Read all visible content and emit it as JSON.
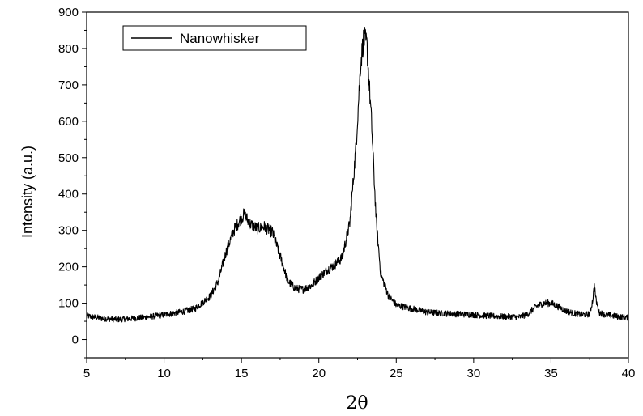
{
  "chart_data": {
    "type": "line",
    "xlabel": "2θ",
    "ylabel": "Intensity (a.u.)",
    "xlim": [
      5,
      40
    ],
    "ylim": [
      -50,
      900
    ],
    "x_ticks": [
      5,
      10,
      15,
      20,
      25,
      30,
      35,
      40
    ],
    "y_ticks": [
      0,
      100,
      200,
      300,
      400,
      500,
      600,
      700,
      800,
      900
    ],
    "grid": false,
    "legend_position": "top-left",
    "series": [
      {
        "name": "Nanowhisker",
        "color": "#000000",
        "x": [
          5.0,
          6.0,
          7.0,
          8.0,
          9.0,
          10.0,
          11.0,
          12.0,
          13.0,
          13.5,
          14.0,
          14.5,
          15.0,
          15.2,
          15.5,
          16.0,
          16.5,
          17.0,
          17.5,
          18.0,
          18.5,
          19.0,
          19.5,
          20.0,
          20.5,
          21.0,
          21.5,
          22.0,
          22.4,
          22.7,
          22.9,
          23.1,
          23.4,
          23.7,
          24.0,
          24.5,
          25.0,
          26.0,
          27.0,
          28.0,
          29.0,
          30.0,
          31.0,
          32.0,
          33.0,
          33.5,
          34.0,
          34.5,
          35.0,
          35.5,
          36.0,
          36.5,
          37.0,
          37.5,
          37.7,
          37.8,
          37.9,
          38.1,
          38.5,
          39.0,
          39.5,
          40.0
        ],
        "y": [
          65,
          58,
          55,
          58,
          62,
          68,
          75,
          85,
          120,
          160,
          240,
          300,
          335,
          345,
          320,
          305,
          310,
          295,
          230,
          160,
          140,
          138,
          148,
          170,
          190,
          205,
          225,
          320,
          530,
          760,
          830,
          810,
          600,
          330,
          180,
          120,
          95,
          85,
          75,
          72,
          70,
          68,
          65,
          63,
          62,
          70,
          90,
          100,
          100,
          90,
          78,
          72,
          68,
          70,
          110,
          150,
          110,
          75,
          68,
          65,
          62,
          60
        ]
      }
    ]
  }
}
